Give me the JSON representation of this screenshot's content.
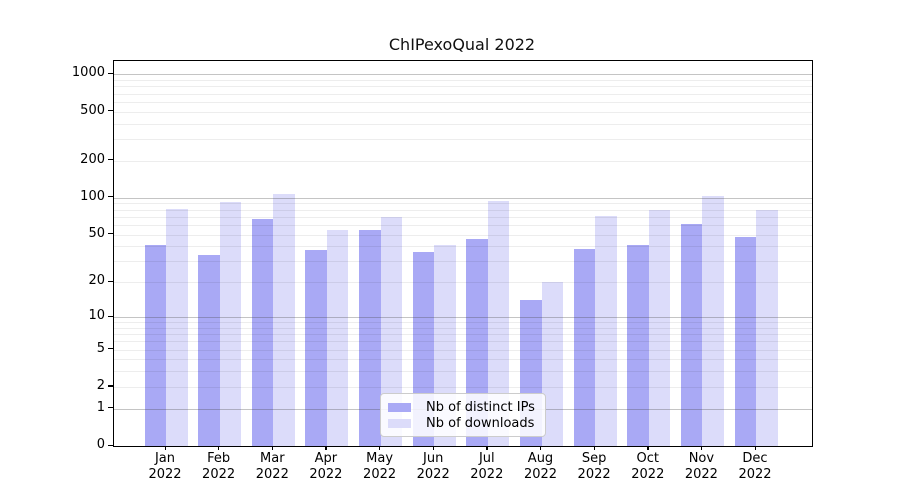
{
  "title": "ChIPexoQual 2022",
  "chart_data": {
    "type": "bar",
    "title": "ChIPexoQual 2022",
    "year": "2022",
    "months": [
      "Jan",
      "Feb",
      "Mar",
      "Apr",
      "May",
      "Jun",
      "Jul",
      "Aug",
      "Sep",
      "Oct",
      "Nov",
      "Dec"
    ],
    "categories": [
      "Jan 2022",
      "Feb 2022",
      "Mar 2022",
      "Apr 2022",
      "May 2022",
      "Jun 2022",
      "Jul 2022",
      "Aug 2022",
      "Sep 2022",
      "Oct 2022",
      "Nov 2022",
      "Dec 2022"
    ],
    "series": [
      {
        "name": "Nb of distinct IPs",
        "color": "#a9a9f5",
        "values": [
          41,
          34,
          67,
          37,
          54,
          36,
          46,
          14,
          38,
          41,
          61,
          48
        ]
      },
      {
        "name": "Nb of downloads",
        "color": "#dcdcfa",
        "values": [
          81,
          93,
          108,
          54,
          70,
          41,
          94,
          20,
          71,
          79,
          103,
          79
        ]
      }
    ],
    "xlabel": "",
    "ylabel": "",
    "yscale": "log1p",
    "yticks": [
      0,
      1,
      2,
      5,
      10,
      20,
      50,
      100,
      200,
      500,
      1000
    ],
    "ylim": [
      0,
      1280
    ],
    "grid": true,
    "legend_position": "lower center",
    "colors": {
      "frame": "#000000",
      "major_grid": "#b5b5b5",
      "minor_grid": "#ebebeb",
      "background": "#ffffff"
    }
  }
}
